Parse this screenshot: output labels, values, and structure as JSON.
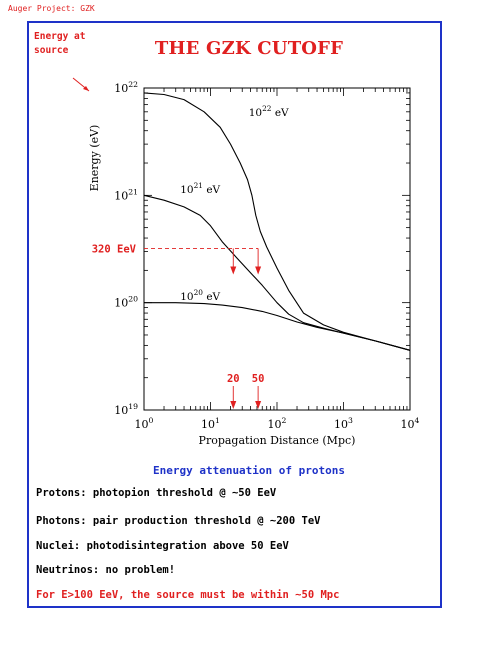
{
  "header": "Auger Project: GZK",
  "energy_at_source": [
    "Energy at",
    "source"
  ],
  "title": "THE GZK CUTOFF",
  "caption": "Energy attenuation of protons",
  "statements": [
    {
      "text": "Protons: photopion threshold @ ~50 EeV",
      "color": "#000000"
    },
    {
      "text": "Photons: pair production threshold @ ~200 TeV",
      "color": "#000000"
    },
    {
      "text": "Nuclei: photodisintegration above 50 EeV",
      "color": "#000000"
    },
    {
      "text": "Neutrinos: no problem!",
      "color": "#000000"
    },
    {
      "text": "For E>100 EeV, the source must be within ~50 Mpc",
      "color": "#e02020"
    }
  ],
  "colors": {
    "accent": "#e02020",
    "frame": "#1e32c8",
    "line": "#000000"
  },
  "chart_data": {
    "type": "line",
    "xlabel": "Propagation Distance (Mpc)",
    "ylabel": "Energy (eV)",
    "x_scale": "log",
    "y_scale": "log",
    "xlim": [
      1,
      10000
    ],
    "ylim": [
      1e+19,
      1e+22
    ],
    "x_ticks": [
      {
        "value": 1,
        "base": "10",
        "exp": "0"
      },
      {
        "value": 10,
        "base": "10",
        "exp": "1"
      },
      {
        "value": 100,
        "base": "10",
        "exp": "2"
      },
      {
        "value": 1000,
        "base": "10",
        "exp": "3"
      },
      {
        "value": 10000,
        "base": "10",
        "exp": "4"
      }
    ],
    "y_ticks": [
      {
        "value": 1e+19,
        "base": "10",
        "exp": "19"
      },
      {
        "value": 1e+20,
        "base": "10",
        "exp": "20"
      },
      {
        "value": 1e+21,
        "base": "10",
        "exp": "21"
      },
      {
        "value": 1e+22,
        "base": "10",
        "exp": "22"
      }
    ],
    "series": [
      {
        "label_base": "10",
        "label_exp": "22",
        "label_unit": "eV",
        "label_at": [
          75,
          5.5e+21
        ],
        "x": [
          1,
          2,
          4,
          8,
          14,
          20,
          28,
          36,
          42,
          48,
          56,
          70,
          100,
          150,
          250,
          500,
          1000,
          3000,
          10000
        ],
        "y": [
          9e+21,
          8.7e+21,
          7.8e+21,
          6e+21,
          4.3e+21,
          3e+21,
          2e+21,
          1.4e+21,
          1e+21,
          6.5e+20,
          4.6e+20,
          3.3e+20,
          2.1e+20,
          1.3e+20,
          8e+19,
          6.2e+19,
          5.3e+19,
          4.4e+19,
          3.6e+19
        ]
      },
      {
        "label_base": "10",
        "label_exp": "21",
        "label_unit": "eV",
        "label_at": [
          7,
          1.05e+21
        ],
        "x": [
          1,
          2,
          4,
          7,
          10,
          15,
          25,
          40,
          60,
          100,
          150,
          250,
          500,
          1000,
          3000,
          10000
        ],
        "y": [
          1e+21,
          9e+20,
          7.8e+20,
          6.5e+20,
          5.2e+20,
          3.7e+20,
          2.6e+20,
          1.9e+20,
          1.45e+20,
          1e+20,
          7.8e+19,
          6.5e+19,
          5.8e+19,
          5.2e+19,
          4.4e+19,
          3.6e+19
        ]
      },
      {
        "label_base": "10",
        "label_exp": "20",
        "label_unit": "eV",
        "label_at": [
          7,
          1.06e+20
        ],
        "x": [
          1,
          3,
          8,
          15,
          30,
          60,
          100,
          200,
          400,
          1000,
          3000,
          10000
        ],
        "y": [
          1e+20,
          1e+20,
          9.8e+19,
          9.5e+19,
          9e+19,
          8.3e+19,
          7.6e+19,
          6.6e+19,
          5.9e+19,
          5.2e+19,
          4.4e+19,
          3.6e+19
        ]
      }
    ],
    "annotations": {
      "hline": {
        "value": 3.2e+20,
        "label": "320 EeV",
        "x_end": 52
      },
      "drops": [
        22,
        52
      ],
      "distance_markers": [
        {
          "x": 22,
          "label": "20"
        },
        {
          "x": 52,
          "label": "50"
        }
      ]
    }
  }
}
